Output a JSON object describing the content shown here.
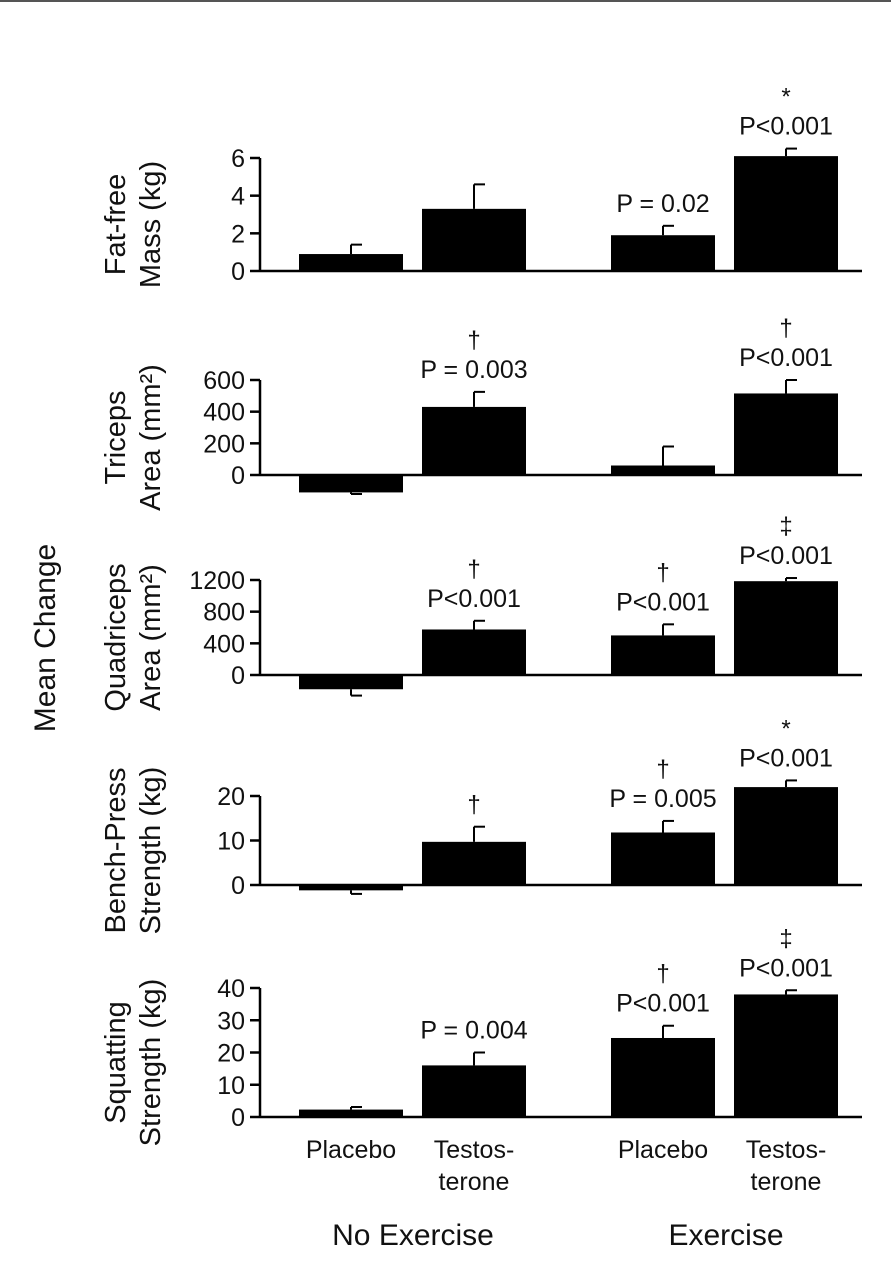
{
  "figure": {
    "main_ylabel": "Mean Change",
    "group_labels": [
      "No Exercise",
      "Exercise"
    ],
    "bar_labels": [
      [
        "Placebo"
      ],
      [
        "Testos-",
        "terone"
      ],
      [
        "Placebo"
      ],
      [
        "Testos-",
        "terone"
      ]
    ]
  },
  "chart_data": [
    {
      "type": "bar",
      "ylabel": [
        "Fat-free",
        "Mass (kg)"
      ],
      "categories": [
        "No Exercise Placebo",
        "No Exercise Testosterone",
        "Exercise Placebo",
        "Exercise Testosterone"
      ],
      "values": [
        0.9,
        3.3,
        1.9,
        6.1
      ],
      "error": [
        0.5,
        1.3,
        0.5,
        0.4
      ],
      "ylim": [
        0,
        6
      ],
      "yticks": [
        0,
        2,
        4,
        6
      ],
      "annotations": [
        [],
        [],
        [
          "P = 0.02"
        ],
        [
          "*",
          "P<0.001"
        ]
      ]
    },
    {
      "type": "bar",
      "ylabel": [
        "Triceps",
        "Area (mm²)"
      ],
      "categories": [
        "No Exercise Placebo",
        "No Exercise Testosterone",
        "Exercise Placebo",
        "Exercise Testosterone"
      ],
      "values": [
        -110,
        430,
        60,
        515
      ],
      "error": [
        10,
        95,
        120,
        85
      ],
      "ylim": [
        -110,
        600
      ],
      "yticks": [
        0,
        200,
        400,
        600
      ],
      "annotations": [
        [],
        [
          "†",
          "P = 0.003"
        ],
        [],
        [
          "†",
          "P<0.001"
        ]
      ]
    },
    {
      "type": "bar",
      "ylabel": [
        "Quadriceps",
        "Area (mm²)"
      ],
      "categories": [
        "No Exercise Placebo",
        "No Exercise Testosterone",
        "Exercise Placebo",
        "Exercise Testosterone"
      ],
      "values": [
        -180,
        575,
        500,
        1185
      ],
      "error": [
        80,
        110,
        140,
        40
      ],
      "ylim": [
        -180,
        1200
      ],
      "yticks": [
        0,
        400,
        800,
        1200
      ],
      "annotations": [
        [],
        [
          "†",
          "P<0.001"
        ],
        [
          "†",
          "P<0.001"
        ],
        [
          "‡",
          "P<0.001"
        ]
      ]
    },
    {
      "type": "bar",
      "ylabel": [
        "Bench-Press",
        "Strength (kg)"
      ],
      "categories": [
        "No Exercise Placebo",
        "No Exercise Testosterone",
        "Exercise Placebo",
        "Exercise Testosterone"
      ],
      "values": [
        -1.2,
        9.7,
        11.8,
        22.0
      ],
      "error": [
        0.8,
        3.4,
        2.6,
        1.5
      ],
      "ylim": [
        -1.2,
        20
      ],
      "yticks": [
        0,
        10,
        20
      ],
      "annotations": [
        [],
        [
          "†"
        ],
        [
          "†",
          "P = 0.005"
        ],
        [
          "*",
          "P<0.001"
        ]
      ]
    },
    {
      "type": "bar",
      "ylabel": [
        "Squatting",
        "Strength (kg)"
      ],
      "categories": [
        "No Exercise Placebo",
        "No Exercise Testosterone",
        "Exercise Placebo",
        "Exercise Testosterone"
      ],
      "values": [
        2.3,
        16.0,
        24.5,
        38.0
      ],
      "error": [
        0.8,
        4.0,
        3.8,
        1.3
      ],
      "ylim": [
        0,
        40
      ],
      "yticks": [
        0,
        10,
        20,
        30,
        40
      ],
      "annotations": [
        [],
        [
          "P = 0.004"
        ],
        [
          "†",
          "P<0.001"
        ],
        [
          "‡",
          "P<0.001"
        ]
      ]
    }
  ]
}
